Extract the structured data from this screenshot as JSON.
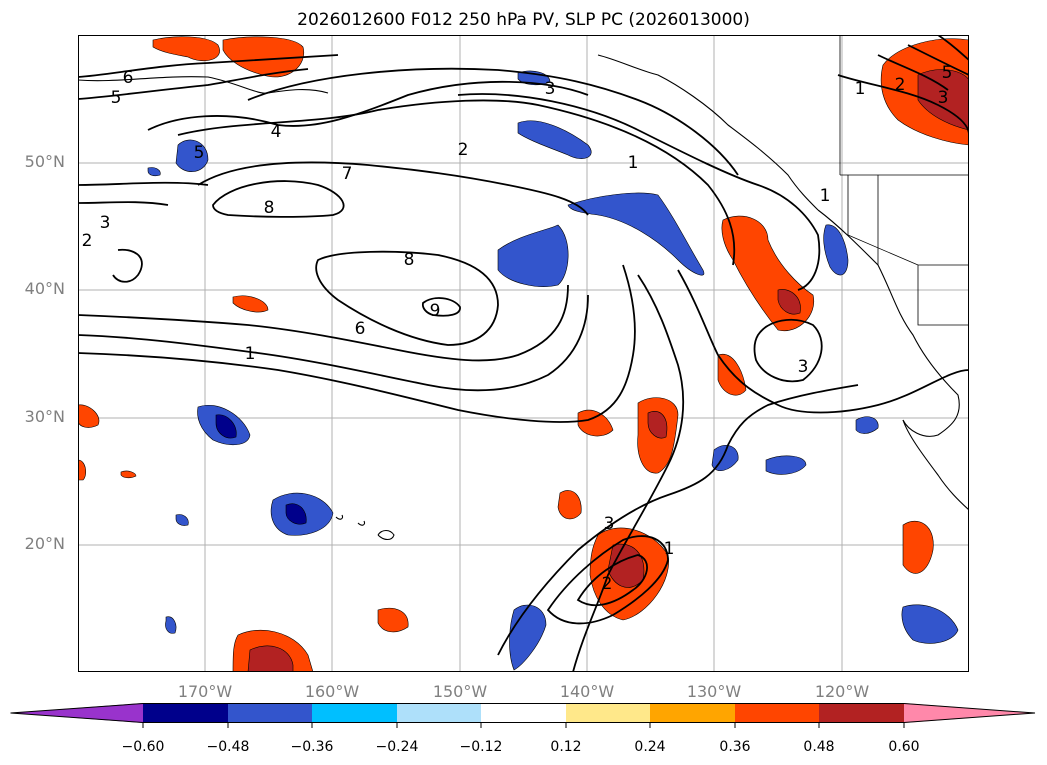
{
  "title": "2026012600 F012 250 hPa PV, SLP PC (2026013000)",
  "map": {
    "lat_ticks": [
      "50°N",
      "40°N",
      "30°N",
      "20°N"
    ],
    "lon_ticks": [
      "170°W",
      "160°W",
      "150°W",
      "140°W",
      "130°W",
      "120°W"
    ],
    "contour_labels": [
      "6",
      "5",
      "4",
      "5",
      "3",
      "2",
      "7",
      "8",
      "8",
      "9",
      "6",
      "1",
      "3",
      "2",
      "1",
      "1",
      "1",
      "2",
      "3",
      "5",
      "3",
      "3",
      "2",
      "1"
    ]
  },
  "colorbar": {
    "tick_labels": [
      "−0.60",
      "−0.48",
      "−0.36",
      "−0.24",
      "−0.12",
      "0.12",
      "0.24",
      "0.36",
      "0.48",
      "0.60"
    ],
    "colors": [
      "#9933cc",
      "#00008b",
      "#3355cc",
      "#00bfff",
      "#aee0fa",
      "#ffffff",
      "#ffe88a",
      "#ffa500",
      "#ff4500",
      "#b22222",
      "#ff88aa"
    ]
  }
}
